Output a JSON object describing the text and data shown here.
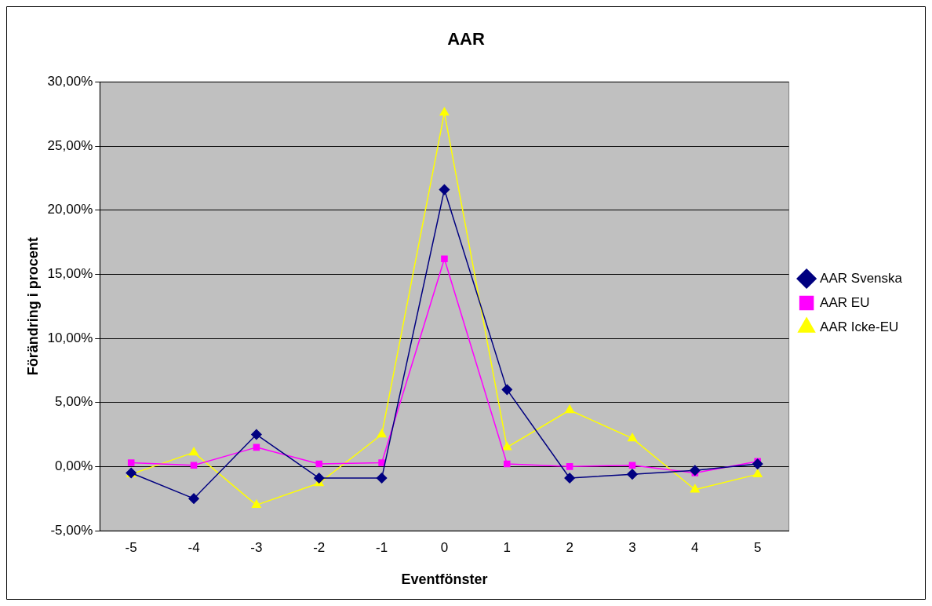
{
  "chart_data": {
    "type": "line",
    "title": "AAR",
    "xlabel": "Eventfönster",
    "ylabel": "Förändring i procent",
    "categories": [
      "-5",
      "-4",
      "-3",
      "-2",
      "-1",
      "0",
      "1",
      "2",
      "3",
      "4",
      "5"
    ],
    "series": [
      {
        "name": "AAR Svenska",
        "color": "#000080",
        "marker": "diamond",
        "values": [
          -0.5,
          -2.5,
          2.5,
          -0.9,
          -0.9,
          21.6,
          6.0,
          -0.9,
          -0.6,
          -0.3,
          0.2
        ]
      },
      {
        "name": "AAR EU",
        "color": "#ff00ff",
        "marker": "square",
        "values": [
          0.3,
          0.1,
          1.5,
          0.2,
          0.3,
          16.2,
          0.2,
          0.0,
          0.1,
          -0.5,
          0.4
        ]
      },
      {
        "name": "AAR Icke-EU",
        "color": "#ffff00",
        "marker": "triangle",
        "values": [
          -0.6,
          1.1,
          -3.0,
          -1.3,
          2.5,
          27.6,
          1.5,
          4.4,
          2.2,
          -1.8,
          -0.6
        ]
      }
    ],
    "ylim": [
      -5,
      30
    ],
    "yticks": [
      {
        "value": -5,
        "label": "-5,00%"
      },
      {
        "value": 0,
        "label": "0,00%"
      },
      {
        "value": 5,
        "label": "5,00%"
      },
      {
        "value": 10,
        "label": "10,00%"
      },
      {
        "value": 15,
        "label": "15,00%"
      },
      {
        "value": 20,
        "label": "20,00%"
      },
      {
        "value": 25,
        "label": "25,00%"
      },
      {
        "value": 30,
        "label": "30,00%"
      }
    ],
    "grid": "y",
    "legend": "right",
    "line_style": "solid"
  }
}
